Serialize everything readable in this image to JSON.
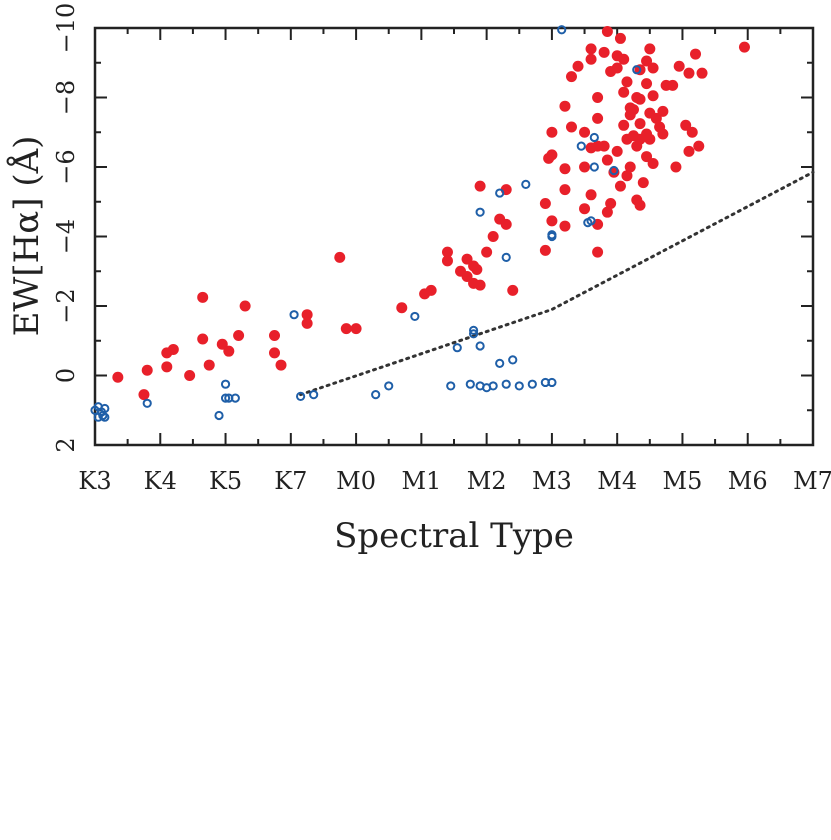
{
  "chart_data": {
    "type": "scatter",
    "xlabel": "Spectral Type",
    "ylabel": "EW[Hα] (Å)",
    "x_ticks": [
      "K3",
      "K4",
      "K5",
      "K7",
      "M0",
      "M1",
      "M2",
      "M3",
      "M4",
      "M5",
      "M6",
      "M7"
    ],
    "xlim": [
      0,
      11
    ],
    "ylim": [
      2,
      -10
    ],
    "y_ticks": [
      2,
      0,
      -2,
      -4,
      -6,
      -8,
      -10
    ],
    "y_tick_labels": [
      "2",
      "0",
      "−2",
      "−4",
      "−6",
      "−8",
      "−10"
    ],
    "colors": {
      "red": "#e8202a",
      "blue": "#1f5fa8",
      "axis": "#222222",
      "line": "#333333"
    },
    "series": [
      {
        "style": "filled-circle",
        "color": "#e8202a",
        "points": [
          [
            0.35,
            0.05
          ],
          [
            0.75,
            0.55
          ],
          [
            0.8,
            -0.15
          ],
          [
            1.1,
            -0.65
          ],
          [
            1.2,
            -0.75
          ],
          [
            1.1,
            -0.25
          ],
          [
            1.45,
            0.0
          ],
          [
            1.65,
            -2.25
          ],
          [
            1.65,
            -1.05
          ],
          [
            1.75,
            -0.3
          ],
          [
            1.95,
            -0.9
          ],
          [
            2.05,
            -0.7
          ],
          [
            2.2,
            -1.15
          ],
          [
            2.3,
            -2.0
          ],
          [
            2.75,
            -1.15
          ],
          [
            2.75,
            -0.65
          ],
          [
            2.85,
            -0.3
          ],
          [
            3.25,
            -1.75
          ],
          [
            3.25,
            -1.5
          ],
          [
            3.75,
            -3.4
          ],
          [
            3.85,
            -1.35
          ],
          [
            4.0,
            -1.35
          ],
          [
            4.7,
            -1.95
          ],
          [
            5.05,
            -2.35
          ],
          [
            5.15,
            -2.45
          ],
          [
            5.4,
            -3.55
          ],
          [
            5.4,
            -3.3
          ],
          [
            5.6,
            -3.0
          ],
          [
            5.7,
            -2.85
          ],
          [
            5.7,
            -3.35
          ],
          [
            5.8,
            -2.65
          ],
          [
            5.8,
            -3.15
          ],
          [
            5.85,
            -3.05
          ],
          [
            5.9,
            -2.6
          ],
          [
            5.9,
            -5.45
          ],
          [
            6.0,
            -3.55
          ],
          [
            6.1,
            -4.0
          ],
          [
            6.2,
            -4.5
          ],
          [
            6.3,
            -4.35
          ],
          [
            6.3,
            -5.35
          ],
          [
            6.4,
            -2.45
          ],
          [
            6.9,
            -3.6
          ],
          [
            6.9,
            -4.95
          ],
          [
            6.95,
            -6.25
          ],
          [
            7.0,
            -4.45
          ],
          [
            7.0,
            -6.35
          ],
          [
            7.0,
            -7.0
          ],
          [
            7.2,
            -4.3
          ],
          [
            7.2,
            -5.35
          ],
          [
            7.2,
            -5.95
          ],
          [
            7.2,
            -7.75
          ],
          [
            7.3,
            -7.15
          ],
          [
            7.3,
            -8.6
          ],
          [
            7.4,
            -8.9
          ],
          [
            7.5,
            -4.8
          ],
          [
            7.5,
            -6.0
          ],
          [
            7.5,
            -7.0
          ],
          [
            7.6,
            -5.2
          ],
          [
            7.6,
            -6.55
          ],
          [
            7.6,
            -9.1
          ],
          [
            7.6,
            -9.4
          ],
          [
            7.7,
            -6.6
          ],
          [
            7.7,
            -7.4
          ],
          [
            7.7,
            -3.55
          ],
          [
            7.7,
            -4.35
          ],
          [
            7.7,
            -8.0
          ],
          [
            7.8,
            -6.6
          ],
          [
            7.8,
            -9.3
          ],
          [
            7.85,
            -4.7
          ],
          [
            7.85,
            -6.2
          ],
          [
            7.85,
            -9.9
          ],
          [
            7.9,
            -4.95
          ],
          [
            7.9,
            -8.75
          ],
          [
            7.95,
            -5.85
          ],
          [
            8.0,
            -9.2
          ],
          [
            8.0,
            -8.85
          ],
          [
            8.0,
            -6.45
          ],
          [
            8.05,
            -5.45
          ],
          [
            8.05,
            -9.7
          ],
          [
            8.1,
            -7.2
          ],
          [
            8.1,
            -8.15
          ],
          [
            8.1,
            -9.1
          ],
          [
            8.15,
            -5.75
          ],
          [
            8.15,
            -6.8
          ],
          [
            8.15,
            -8.45
          ],
          [
            8.2,
            -6.0
          ],
          [
            8.2,
            -7.5
          ],
          [
            8.2,
            -7.7
          ],
          [
            8.25,
            -6.9
          ],
          [
            8.25,
            -7.65
          ],
          [
            8.3,
            -5.05
          ],
          [
            8.3,
            -6.6
          ],
          [
            8.3,
            -8.0
          ],
          [
            8.35,
            -8.8
          ],
          [
            8.35,
            -4.9
          ],
          [
            8.35,
            -6.8
          ],
          [
            8.35,
            -7.25
          ],
          [
            8.35,
            -7.95
          ],
          [
            8.4,
            -5.55
          ],
          [
            8.45,
            -8.4
          ],
          [
            8.45,
            -6.3
          ],
          [
            8.45,
            -6.95
          ],
          [
            8.45,
            -9.05
          ],
          [
            8.5,
            -6.8
          ],
          [
            8.5,
            -7.55
          ],
          [
            8.5,
            -9.4
          ],
          [
            8.55,
            -6.1
          ],
          [
            8.55,
            -8.05
          ],
          [
            8.55,
            -8.85
          ],
          [
            8.6,
            -7.4
          ],
          [
            8.65,
            -7.15
          ],
          [
            8.7,
            -6.95
          ],
          [
            8.7,
            -7.6
          ],
          [
            8.75,
            -8.35
          ],
          [
            8.85,
            -8.35
          ],
          [
            8.9,
            -6.0
          ],
          [
            8.95,
            -8.9
          ],
          [
            9.05,
            -7.2
          ],
          [
            9.1,
            -6.45
          ],
          [
            9.1,
            -8.7
          ],
          [
            9.15,
            -7.0
          ],
          [
            9.2,
            -9.25
          ],
          [
            9.25,
            -6.6
          ],
          [
            9.3,
            -8.7
          ],
          [
            9.95,
            -9.45
          ]
        ]
      },
      {
        "style": "open-circle",
        "color": "#1f5fa8",
        "points": [
          [
            0.0,
            1.0
          ],
          [
            0.05,
            0.9
          ],
          [
            0.05,
            1.2
          ],
          [
            0.1,
            1.05
          ],
          [
            0.12,
            1.15
          ],
          [
            0.15,
            0.95
          ],
          [
            0.15,
            1.2
          ],
          [
            0.8,
            0.8
          ],
          [
            1.9,
            1.15
          ],
          [
            2.0,
            0.25
          ],
          [
            2.0,
            0.65
          ],
          [
            2.05,
            0.65
          ],
          [
            2.15,
            0.65
          ],
          [
            3.05,
            -1.75
          ],
          [
            3.15,
            0.6
          ],
          [
            3.35,
            0.55
          ],
          [
            4.3,
            0.55
          ],
          [
            4.5,
            0.3
          ],
          [
            4.9,
            -1.7
          ],
          [
            5.45,
            0.3
          ],
          [
            5.55,
            -0.8
          ],
          [
            5.75,
            0.25
          ],
          [
            5.8,
            -1.3
          ],
          [
            5.8,
            -1.2
          ],
          [
            5.9,
            0.3
          ],
          [
            5.9,
            -0.85
          ],
          [
            5.9,
            -4.7
          ],
          [
            6.0,
            0.35
          ],
          [
            6.1,
            0.3
          ],
          [
            6.2,
            -0.35
          ],
          [
            6.2,
            -5.25
          ],
          [
            6.3,
            0.25
          ],
          [
            6.3,
            -3.4
          ],
          [
            6.4,
            -0.45
          ],
          [
            6.5,
            0.3
          ],
          [
            6.6,
            -5.5
          ],
          [
            6.7,
            0.25
          ],
          [
            6.9,
            0.2
          ],
          [
            7.0,
            -4.0
          ],
          [
            7.0,
            -4.05
          ],
          [
            7.0,
            0.2
          ],
          [
            7.15,
            -9.95
          ],
          [
            7.45,
            -6.6
          ],
          [
            7.55,
            -4.4
          ],
          [
            7.6,
            -4.45
          ],
          [
            7.65,
            -6.85
          ],
          [
            7.65,
            -6.0
          ],
          [
            7.95,
            -5.9
          ],
          [
            8.3,
            -8.8
          ]
        ]
      }
    ],
    "threshold_line": {
      "style": "dotted",
      "points": [
        [
          3.15,
          0.55
        ],
        [
          7.0,
          -1.9
        ],
        [
          11.0,
          -5.85
        ]
      ]
    }
  }
}
